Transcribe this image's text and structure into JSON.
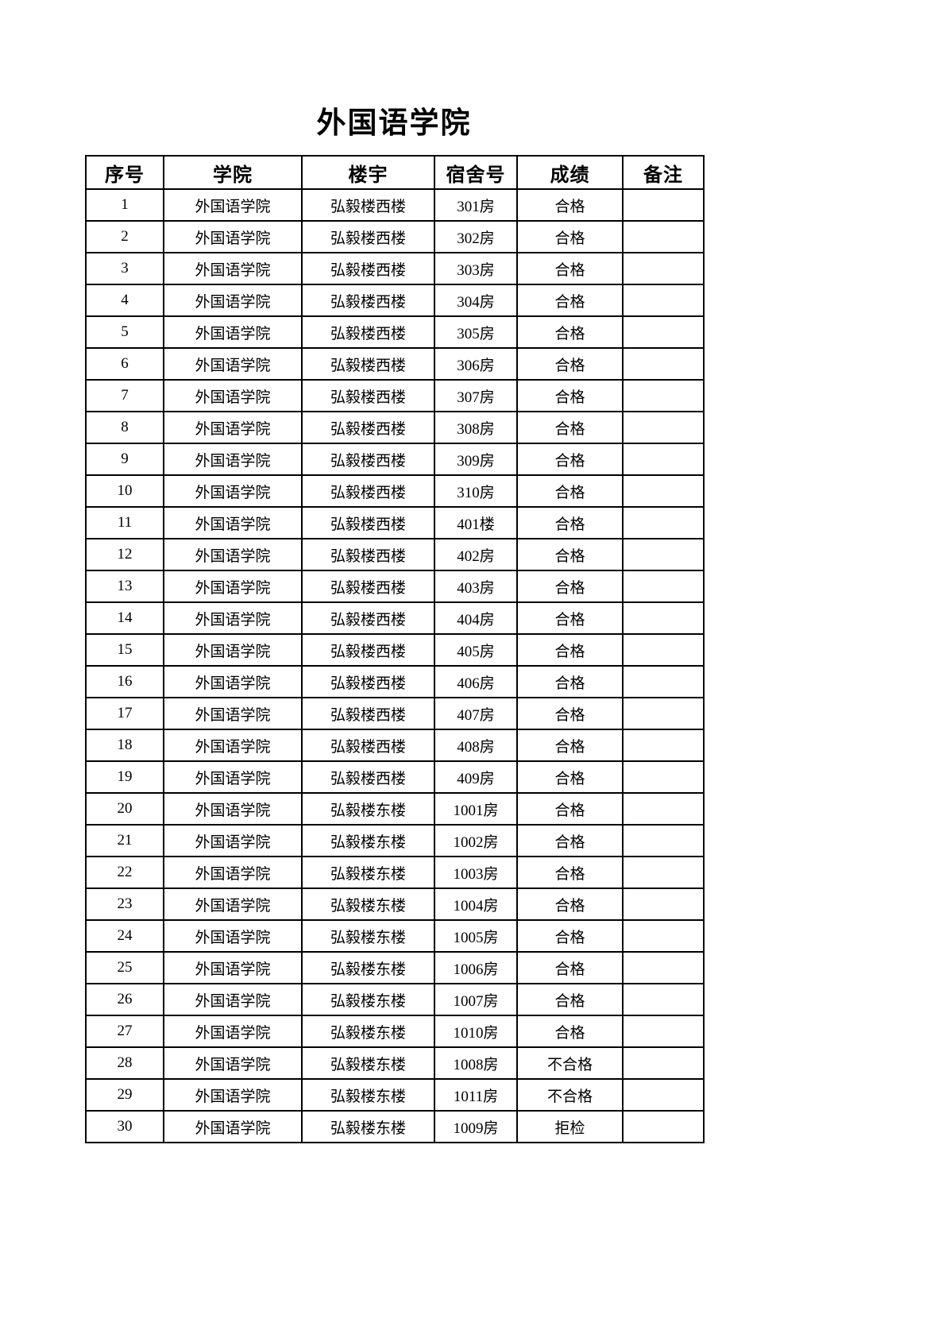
{
  "title": "外国语学院",
  "table": {
    "headers": [
      "序号",
      "学院",
      "楼宇",
      "宿舍号",
      "成绩",
      "备注"
    ],
    "header_keys": [
      "index",
      "college",
      "building",
      "room",
      "result",
      "remark"
    ],
    "rows": [
      [
        "1",
        "外国语学院",
        "弘毅楼西楼",
        "301房",
        "合格",
        ""
      ],
      [
        "2",
        "外国语学院",
        "弘毅楼西楼",
        "302房",
        "合格",
        ""
      ],
      [
        "3",
        "外国语学院",
        "弘毅楼西楼",
        "303房",
        "合格",
        ""
      ],
      [
        "4",
        "外国语学院",
        "弘毅楼西楼",
        "304房",
        "合格",
        ""
      ],
      [
        "5",
        "外国语学院",
        "弘毅楼西楼",
        "305房",
        "合格",
        ""
      ],
      [
        "6",
        "外国语学院",
        "弘毅楼西楼",
        "306房",
        "合格",
        ""
      ],
      [
        "7",
        "外国语学院",
        "弘毅楼西楼",
        "307房",
        "合格",
        ""
      ],
      [
        "8",
        "外国语学院",
        "弘毅楼西楼",
        "308房",
        "合格",
        ""
      ],
      [
        "9",
        "外国语学院",
        "弘毅楼西楼",
        "309房",
        "合格",
        ""
      ],
      [
        "10",
        "外国语学院",
        "弘毅楼西楼",
        "310房",
        "合格",
        ""
      ],
      [
        "11",
        "外国语学院",
        "弘毅楼西楼",
        "401楼",
        "合格",
        ""
      ],
      [
        "12",
        "外国语学院",
        "弘毅楼西楼",
        "402房",
        "合格",
        ""
      ],
      [
        "13",
        "外国语学院",
        "弘毅楼西楼",
        "403房",
        "合格",
        ""
      ],
      [
        "14",
        "外国语学院",
        "弘毅楼西楼",
        "404房",
        "合格",
        ""
      ],
      [
        "15",
        "外国语学院",
        "弘毅楼西楼",
        "405房",
        "合格",
        ""
      ],
      [
        "16",
        "外国语学院",
        "弘毅楼西楼",
        "406房",
        "合格",
        ""
      ],
      [
        "17",
        "外国语学院",
        "弘毅楼西楼",
        "407房",
        "合格",
        ""
      ],
      [
        "18",
        "外国语学院",
        "弘毅楼西楼",
        "408房",
        "合格",
        ""
      ],
      [
        "19",
        "外国语学院",
        "弘毅楼西楼",
        "409房",
        "合格",
        ""
      ],
      [
        "20",
        "外国语学院",
        "弘毅楼东楼",
        "1001房",
        "合格",
        ""
      ],
      [
        "21",
        "外国语学院",
        "弘毅楼东楼",
        "1002房",
        "合格",
        ""
      ],
      [
        "22",
        "外国语学院",
        "弘毅楼东楼",
        "1003房",
        "合格",
        ""
      ],
      [
        "23",
        "外国语学院",
        "弘毅楼东楼",
        "1004房",
        "合格",
        ""
      ],
      [
        "24",
        "外国语学院",
        "弘毅楼东楼",
        "1005房",
        "合格",
        ""
      ],
      [
        "25",
        "外国语学院",
        "弘毅楼东楼",
        "1006房",
        "合格",
        ""
      ],
      [
        "26",
        "外国语学院",
        "弘毅楼东楼",
        "1007房",
        "合格",
        ""
      ],
      [
        "27",
        "外国语学院",
        "弘毅楼东楼",
        "1010房",
        "合格",
        ""
      ],
      [
        "28",
        "外国语学院",
        "弘毅楼东楼",
        "1008房",
        "不合格",
        ""
      ],
      [
        "29",
        "外国语学院",
        "弘毅楼东楼",
        "1011房",
        "不合格",
        ""
      ],
      [
        "30",
        "外国语学院",
        "弘毅楼东楼",
        "1009房",
        "拒检",
        ""
      ]
    ]
  },
  "colors": {
    "text": "#000000",
    "border": "#000000",
    "background": "#ffffff"
  }
}
